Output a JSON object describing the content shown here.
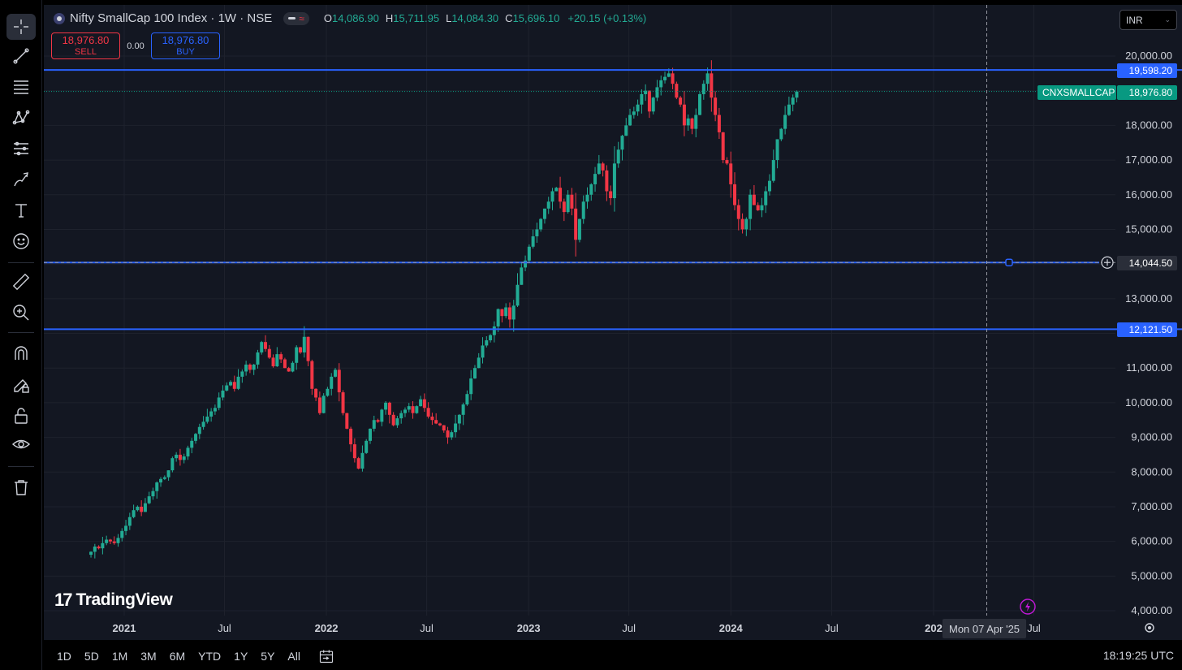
{
  "symbol": {
    "title": "Nifty SmallCap 100 Index · 1W · NSE",
    "ohlc": {
      "o_label": "O",
      "o": "14,086.90",
      "h_label": "H",
      "h": "15,711.95",
      "l_label": "L",
      "l": "14,084.30",
      "c_label": "C",
      "c": "15,696.10",
      "change": "+20.15 (+0.13%)"
    },
    "ticker": "CNXSMALLCAP",
    "last_price": "18,976.80"
  },
  "trade": {
    "sell_price": "18,976.80",
    "sell_label": "SELL",
    "spread": "0.00",
    "buy_price": "18,976.80",
    "buy_label": "BUY"
  },
  "currency": {
    "value": "INR"
  },
  "price_axis": {
    "ticks": [
      "20,000.00",
      "18,000.00",
      "17,000.00",
      "16,000.00",
      "15,000.00",
      "13,000.00",
      "11,000.00",
      "10,000.00",
      "9,000.00",
      "8,000.00",
      "7,000.00",
      "6,000.00",
      "5,000.00",
      "4,000.00"
    ],
    "hlines": [
      "19,598.20",
      "14,044.50",
      "12,121.50"
    ]
  },
  "time_axis": {
    "ticks": [
      "2021",
      "Jul",
      "2022",
      "Jul",
      "2023",
      "Jul",
      "2024",
      "Jul",
      "202",
      "Jul"
    ],
    "crosshair_date": "Mon 07 Apr '25"
  },
  "branding": {
    "logo": "TradingView",
    "mark": "17"
  },
  "bottom_bar": {
    "ranges": [
      "1D",
      "5D",
      "1M",
      "3M",
      "6M",
      "YTD",
      "1Y",
      "5Y",
      "All"
    ],
    "clock": "18:19:25 UTC"
  },
  "toolbar": [
    "crosshair-icon",
    "trend-line-icon",
    "fib-retracement-icon",
    "pattern-icon",
    "forecast-icon",
    "brush-icon",
    "text-icon",
    "emoji-icon",
    "ruler-icon",
    "zoom-in-icon",
    "magnet-icon",
    "lock-drawing-icon",
    "unlock-icon",
    "eye-icon",
    "trash-icon"
  ],
  "colors": {
    "up": "#22ab94",
    "down": "#f23645",
    "hline": "#2962ff",
    "background": "#131722"
  },
  "chart_data": {
    "type": "candlestick",
    "title": "Nifty SmallCap 100 Index · 1W · NSE",
    "xlabel": "",
    "ylabel": "",
    "ylim": [
      4000,
      20400
    ],
    "x_start": "2020-11-02",
    "x_end": "2025-06-23",
    "grid": true,
    "horizontal_lines": [
      19598.2,
      14044.5,
      12121.5
    ],
    "close": [
      5700,
      5850,
      5800,
      5950,
      6050,
      6000,
      5950,
      6100,
      6300,
      6450,
      6700,
      6900,
      7000,
      6850,
      7100,
      7300,
      7450,
      7700,
      7800,
      7850,
      8050,
      8400,
      8500,
      8350,
      8450,
      8700,
      8900,
      9100,
      9300,
      9450,
      9600,
      9750,
      9850,
      10150,
      10350,
      10500,
      10600,
      10400,
      10750,
      10900,
      11100,
      10950,
      11100,
      11450,
      11750,
      11550,
      11300,
      11050,
      11400,
      11250,
      11000,
      10900,
      11150,
      11600,
      11450,
      11900,
      11200,
      10400,
      10150,
      9700,
      10200,
      10400,
      10750,
      10950,
      10300,
      9700,
      9250,
      8800,
      8400,
      8100,
      8550,
      8900,
      9250,
      9500,
      9450,
      9800,
      10000,
      9650,
      9350,
      9550,
      9700,
      9800,
      9900,
      9700,
      9900,
      10100,
      9850,
      9600,
      9500,
      9400,
      9350,
      9200,
      9000,
      9150,
      9400,
      9650,
      9950,
      10250,
      10700,
      11000,
      11300,
      11650,
      11800,
      11950,
      12200,
      12700,
      12500,
      12750,
      12400,
      12800,
      13400,
      13900,
      14100,
      14500,
      14800,
      15000,
      15300,
      15600,
      15800,
      16100,
      16200,
      15800,
      15500,
      16000,
      15600,
      14700,
      15300,
      15800,
      16000,
      16300,
      16600,
      16900,
      16700,
      16100,
      15900,
      16900,
      17300,
      17700,
      18000,
      18300,
      18400,
      18600,
      18900,
      19000,
      18400,
      18800,
      19100,
      19300,
      19400,
      19500,
      19200,
      18800,
      18600,
      18000,
      18200,
      17900,
      18300,
      18900,
      19200,
      19500,
      18800,
      18300,
      17800,
      17000,
      16900,
      16300,
      15700,
      15300,
      15000,
      15300,
      16000,
      15700,
      15550,
      15696,
      16100,
      16400,
      17000,
      17600,
      17900,
      18300,
      18600,
      18800,
      18977
    ]
  }
}
